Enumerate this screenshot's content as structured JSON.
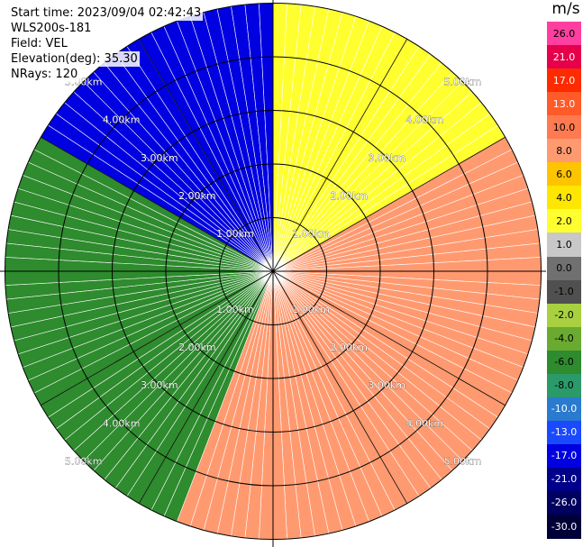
{
  "info": {
    "start_time": "Start time: 2023/09/04 02:42:43",
    "instrument": "WLS200s-181",
    "field": "Field: VEL",
    "elevation": "Elevation(deg): 35.30",
    "nrays": "NRays: 120"
  },
  "colorbar": {
    "unit": "m/s",
    "ticks": [
      "26.0",
      "21.0",
      "17.0",
      "13.0",
      "10.0",
      "8.0",
      "6.0",
      "4.0",
      "2.0",
      "1.0",
      "0.0",
      "-1.0",
      "-2.0",
      "-4.0",
      "-6.0",
      "-8.0",
      "-10.0",
      "-13.0",
      "-17.0",
      "-21.0",
      "-26.0",
      "-30.0"
    ],
    "colors": [
      "#ff3fa0",
      "#e6004c",
      "#ff2a00",
      "#ff5a28",
      "#ff7a50",
      "#ff9a70",
      "#ffc400",
      "#ffe600",
      "#ffff30",
      "#c8c8c8",
      "#707070",
      "#505050",
      "#a8d040",
      "#6aaa30",
      "#2e8b2e",
      "#2a9a6a",
      "#2a7ad0",
      "#1a4aff",
      "#0000e0",
      "#00008a",
      "#000060",
      "#000038"
    ]
  },
  "chart_data": {
    "type": "ppi",
    "field": "VEL",
    "units": "m/s",
    "elevation_deg": 35.3,
    "n_rays": 120,
    "range_rings_km": [
      1.0,
      2.0,
      3.0,
      4.0,
      5.0
    ],
    "range_labels": [
      "1.00km",
      "2.00km",
      "3.00km",
      "4.00km",
      "5.00km"
    ],
    "radial_spokes_deg": [
      0,
      30,
      60,
      90,
      120,
      150,
      180,
      210,
      240,
      270,
      300,
      330
    ],
    "max_range_km": 5.0,
    "approx_velocity_by_sector": [
      {
        "azimuth_range_deg": [
          0,
          60
        ],
        "velocity_ms": 3.0,
        "note": "yellow region NE"
      },
      {
        "azimuth_range_deg": [
          60,
          200
        ],
        "velocity_ms": 9.0,
        "note": "orange/red region SE-S"
      },
      {
        "azimuth_range_deg": [
          200,
          300
        ],
        "velocity_ms": -6.0,
        "note": "green region SW-W"
      },
      {
        "azimuth_range_deg": [
          300,
          360
        ],
        "velocity_ms": -17.0,
        "note": "blue region NW"
      }
    ]
  }
}
